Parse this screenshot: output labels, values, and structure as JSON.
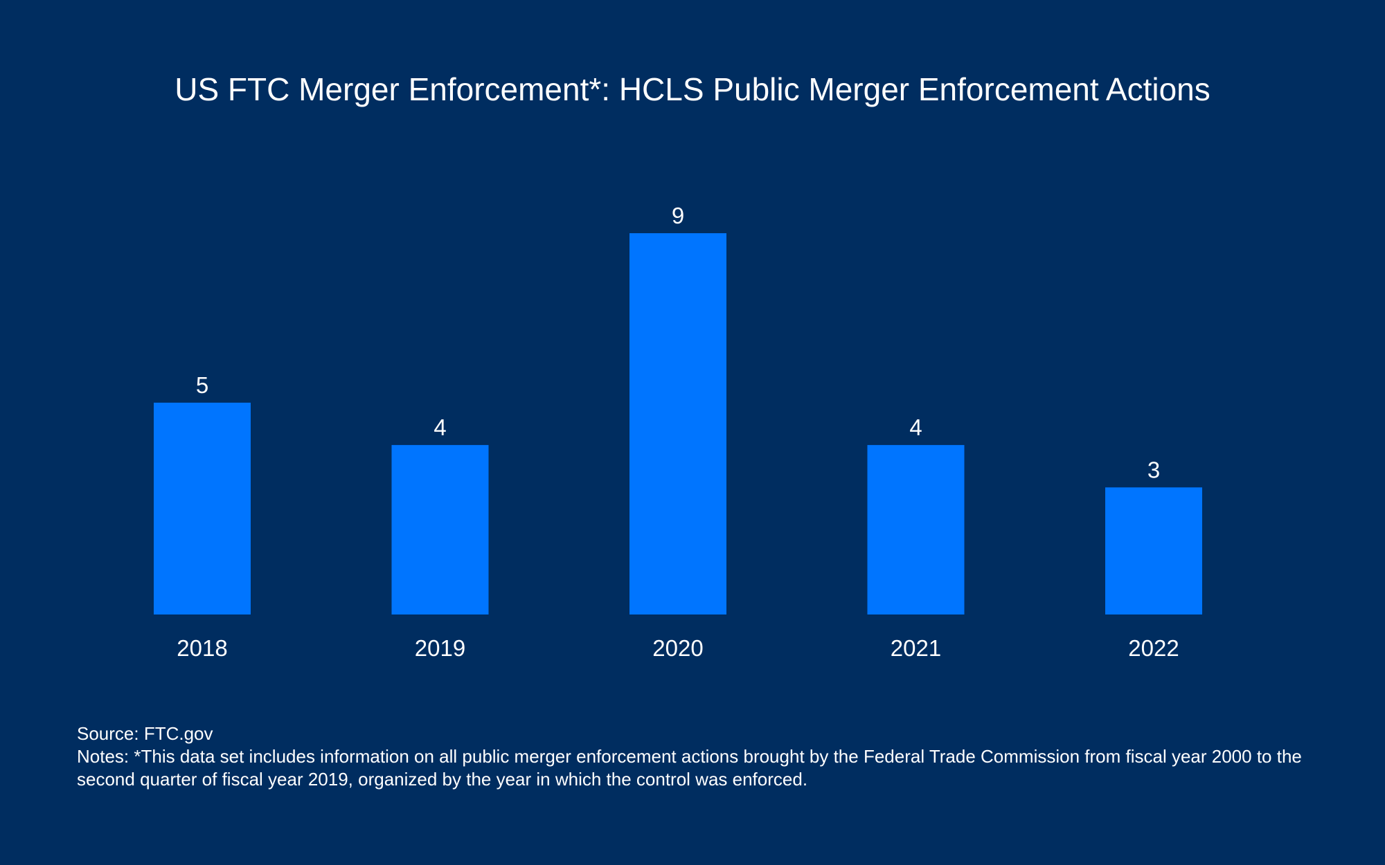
{
  "chart_data": {
    "type": "bar",
    "title": "US FTC Merger Enforcement*: HCLS Public Merger Enforcement Actions",
    "categories": [
      "2018",
      "2019",
      "2020",
      "2021",
      "2022"
    ],
    "values": [
      5,
      4,
      9,
      4,
      3
    ],
    "xlabel": "",
    "ylabel": "",
    "ylim": [
      0,
      9
    ],
    "grid": false,
    "legend": "none",
    "data_labels": true,
    "bar_color": "#0075ff"
  },
  "footer": {
    "source": "Source: FTC.gov",
    "notes": "Notes: *This data set includes information on all public merger enforcement actions brought by the Federal Trade Commission from fiscal year 2000 to the second quarter of fiscal year 2019, organized by the year in which the control was enforced."
  },
  "colors": {
    "background": "#002d60",
    "bar": "#0075ff",
    "text": "#ffffff"
  }
}
